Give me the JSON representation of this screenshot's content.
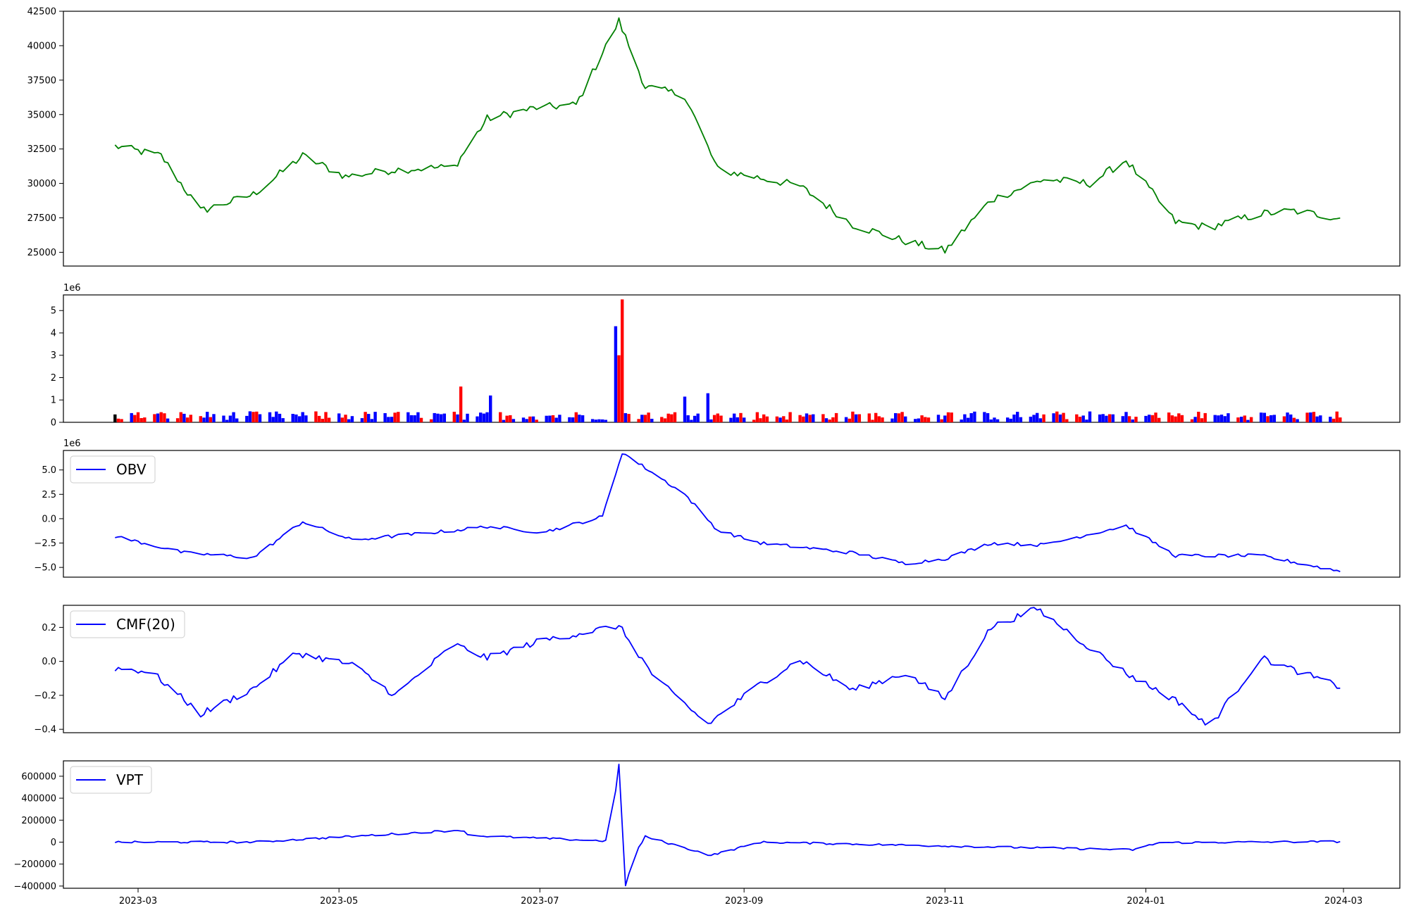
{
  "colors": {
    "price": "#008000",
    "up": "#0000ff",
    "down": "#ff0000",
    "flat": "#000000",
    "indicator": "#0000ff",
    "frame": "#000000"
  },
  "x_tick_labels": [
    "2023-03",
    "2023-05",
    "2023-07",
    "2023-09",
    "2023-11",
    "2024-01",
    "2024-03"
  ],
  "chart_data": [
    {
      "type": "line",
      "name": "price",
      "x_range": [
        "2023-02-20",
        "2024-02-29"
      ],
      "ylim": [
        24000,
        42500
      ],
      "yticks": [
        25000,
        27500,
        30000,
        32500,
        35000,
        37500,
        40000,
        42500
      ],
      "grid": false,
      "anchors_x": [
        "2023-02-22",
        "2023-03-08",
        "2023-03-20",
        "2023-04-05",
        "2023-04-20",
        "2023-05-03",
        "2023-05-18",
        "2023-06-05",
        "2023-06-15",
        "2023-06-30",
        "2023-07-12",
        "2023-07-25",
        "2023-08-02",
        "2023-08-14",
        "2023-08-24",
        "2023-09-06",
        "2023-09-18",
        "2023-10-04",
        "2023-10-20",
        "2023-11-01",
        "2023-11-15",
        "2023-12-01",
        "2023-12-15",
        "2023-12-26",
        "2024-01-10",
        "2024-01-20",
        "2024-02-05",
        "2024-02-15",
        "2024-02-29"
      ],
      "anchors_y": [
        32700,
        32000,
        28000,
        29200,
        32000,
        30500,
        31000,
        31200,
        34700,
        35500,
        35700,
        41800,
        37000,
        36400,
        31000,
        30400,
        29800,
        27000,
        25800,
        25100,
        28800,
        30300,
        30000,
        31700,
        27200,
        26800,
        27800,
        28000,
        27500
      ]
    },
    {
      "type": "bar",
      "name": "volume",
      "offset_label": "1e6",
      "ylim": [
        0,
        5.7
      ],
      "yticks": [
        0,
        1,
        2,
        3,
        4,
        5
      ],
      "grid": false,
      "spikes_x": [
        "2023-06-07",
        "2023-06-16",
        "2023-07-24",
        "2023-07-25",
        "2023-07-26",
        "2023-08-14",
        "2023-08-21"
      ],
      "spikes_y": [
        1.6,
        1.2,
        4.3,
        3.0,
        5.5,
        1.15,
        1.3
      ],
      "typical_value": 0.3
    },
    {
      "type": "line",
      "name": "obv",
      "offset_label": "1e6",
      "legend": "OBV",
      "legend_position": "upper-left",
      "ylim": [
        -6.0,
        7.0
      ],
      "yticks": [
        5.0,
        2.5,
        0.0,
        -2.5,
        -5.0
      ],
      "grid": false,
      "anchors_x": [
        "2023-02-22",
        "2023-03-15",
        "2023-04-05",
        "2023-04-20",
        "2023-05-05",
        "2023-06-05",
        "2023-06-15",
        "2023-07-02",
        "2023-07-20",
        "2023-07-26",
        "2023-08-14",
        "2023-08-24",
        "2023-09-06",
        "2023-10-04",
        "2023-10-20",
        "2023-11-01",
        "2023-11-15",
        "2023-12-01",
        "2023-12-26",
        "2024-01-10",
        "2024-02-05",
        "2024-02-29"
      ],
      "anchors_y": [
        -1.8,
        -3.5,
        -4.0,
        -0.3,
        -2.2,
        -1.2,
        -0.8,
        -1.4,
        0.2,
        6.8,
        2.5,
        -1.2,
        -2.5,
        -3.5,
        -4.6,
        -4.1,
        -2.5,
        -2.7,
        -0.7,
        -3.8,
        -3.8,
        -5.4
      ]
    },
    {
      "type": "line",
      "name": "cmf",
      "legend": "CMF(20)",
      "legend_position": "upper-left",
      "ylim": [
        -0.42,
        0.33
      ],
      "yticks": [
        0.2,
        0.0,
        -0.2,
        -0.4
      ],
      "grid": false,
      "anchors_x": [
        "2023-02-22",
        "2023-03-05",
        "2023-03-20",
        "2023-04-05",
        "2023-04-18",
        "2023-05-05",
        "2023-05-18",
        "2023-06-05",
        "2023-06-15",
        "2023-07-01",
        "2023-07-25",
        "2023-08-05",
        "2023-08-21",
        "2023-09-06",
        "2023-09-18",
        "2023-10-04",
        "2023-10-20",
        "2023-11-01",
        "2023-11-15",
        "2023-11-29",
        "2023-12-10",
        "2023-12-26",
        "2024-01-12",
        "2024-01-20",
        "2024-02-05",
        "2024-02-29"
      ],
      "anchors_y": [
        -0.04,
        -0.06,
        -0.31,
        -0.16,
        0.05,
        -0.02,
        -0.2,
        0.1,
        0.02,
        0.12,
        0.21,
        -0.1,
        -0.37,
        -0.13,
        0.01,
        -0.17,
        -0.07,
        -0.22,
        0.2,
        0.31,
        0.15,
        -0.07,
        -0.25,
        -0.39,
        0.02,
        -0.15
      ]
    },
    {
      "type": "line",
      "name": "vpt",
      "legend": "VPT",
      "legend_position": "upper-left",
      "ylim": [
        -420000,
        740000
      ],
      "yticks": [
        600000,
        400000,
        200000,
        0,
        -200000,
        -400000
      ],
      "grid": false,
      "anchors_x": [
        "2023-02-22",
        "2023-04-05",
        "2023-06-07",
        "2023-06-10",
        "2023-07-22",
        "2023-07-25",
        "2023-07-27",
        "2023-07-30",
        "2023-08-02",
        "2023-08-22",
        "2023-09-06",
        "2023-12-28",
        "2024-01-05",
        "2024-02-29"
      ],
      "anchors_y": [
        0,
        0,
        110000,
        60000,
        10000,
        700000,
        -390000,
        -100000,
        50000,
        -120000,
        0,
        -70000,
        -5000,
        5000
      ]
    }
  ]
}
